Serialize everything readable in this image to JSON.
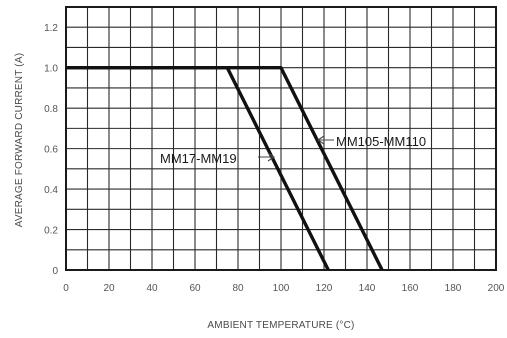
{
  "chart_data": {
    "type": "line",
    "xlabel": "AMBIENT TEMPERATURE (°C)",
    "ylabel": "AVERAGE FORWARD CURRENT (A)",
    "xlim": [
      0,
      200
    ],
    "ylim": [
      0,
      1.3
    ],
    "x_ticks": [
      "0",
      "20",
      "40",
      "60",
      "80",
      "100",
      "120",
      "140",
      "160",
      "180",
      "200"
    ],
    "y_ticks": [
      "0",
      "0.2",
      "0.4",
      "0.6",
      "0.8",
      "1.0",
      "1.2"
    ],
    "grid": true,
    "series": [
      {
        "name": "MM17-MM19",
        "x": [
          0,
          75,
          122
        ],
        "y": [
          1.0,
          1.0,
          0
        ]
      },
      {
        "name": "MM105-MM110",
        "x": [
          0,
          100,
          147
        ],
        "y": [
          1.0,
          1.0,
          0
        ]
      }
    ]
  }
}
